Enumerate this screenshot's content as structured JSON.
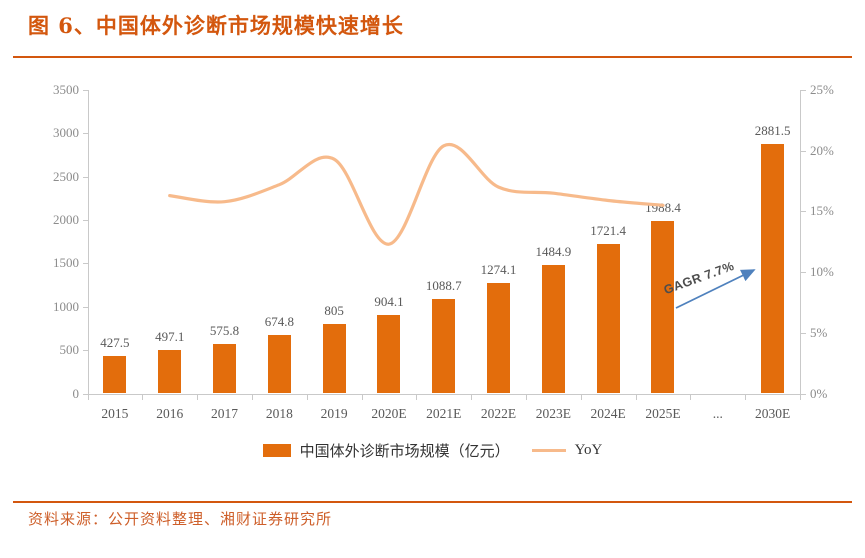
{
  "header": {
    "title": "图 6、中国体外诊断市场规模快速增长"
  },
  "legend": {
    "bar_label": "中国体外诊断市场规模（亿元）",
    "line_label": "YoY"
  },
  "footer": {
    "source": "资料来源：公开资料整理、湘财证券研究所"
  },
  "annotation": {
    "text": "GAGR 7.7%"
  },
  "colors": {
    "accent": "#D3570E",
    "source_text": "#CE5F2A",
    "bar": "#E36D0C",
    "yoy_line": "#F7BA8B",
    "arrow": "#4F81BD",
    "axis_gray": "#C9C9C9",
    "label_gray": "#595959",
    "tick_label_gray": "#8C8C8C"
  },
  "chart_data": {
    "type": "bar",
    "subtype": "bar-line-combo",
    "title": "中国体外诊断市场规模快速增长",
    "categories": [
      "2015",
      "2016",
      "2017",
      "2018",
      "2019",
      "2020E",
      "2021E",
      "2022E",
      "2023E",
      "2024E",
      "2025E",
      "...",
      "2030E"
    ],
    "series": [
      {
        "name": "中国体外诊断市场规模（亿元）",
        "type": "bar",
        "axis": "left",
        "values": [
          427.5,
          497.1,
          575.8,
          674.8,
          805,
          904.1,
          1088.7,
          1274.1,
          1484.9,
          1721.4,
          1988.4,
          null,
          2881.5
        ],
        "labels": [
          "427.5",
          "497.1",
          "575.8",
          "674.8",
          "805",
          "904.1",
          "1088.7",
          "1274.1",
          "1484.9",
          "1721.4",
          "1988.4",
          "",
          "2881.5"
        ]
      },
      {
        "name": "YoY",
        "type": "line",
        "axis": "right",
        "values_pct": [
          null,
          16.3,
          15.8,
          17.2,
          19.3,
          12.3,
          20.4,
          17.0,
          16.5,
          15.9,
          15.5,
          null,
          null
        ]
      }
    ],
    "left_axis": {
      "ticks": [
        0,
        500,
        1000,
        1500,
        2000,
        2500,
        3000,
        3500
      ],
      "max": 3500
    },
    "right_axis": {
      "ticks_pct": [
        0,
        5,
        10,
        15,
        20,
        25
      ],
      "labels": [
        "0%",
        "5%",
        "10%",
        "15%",
        "20%",
        "25%"
      ],
      "max_pct": 25
    },
    "annotation": "GAGR 7.7%",
    "legend_position": "bottom",
    "grid": false
  }
}
